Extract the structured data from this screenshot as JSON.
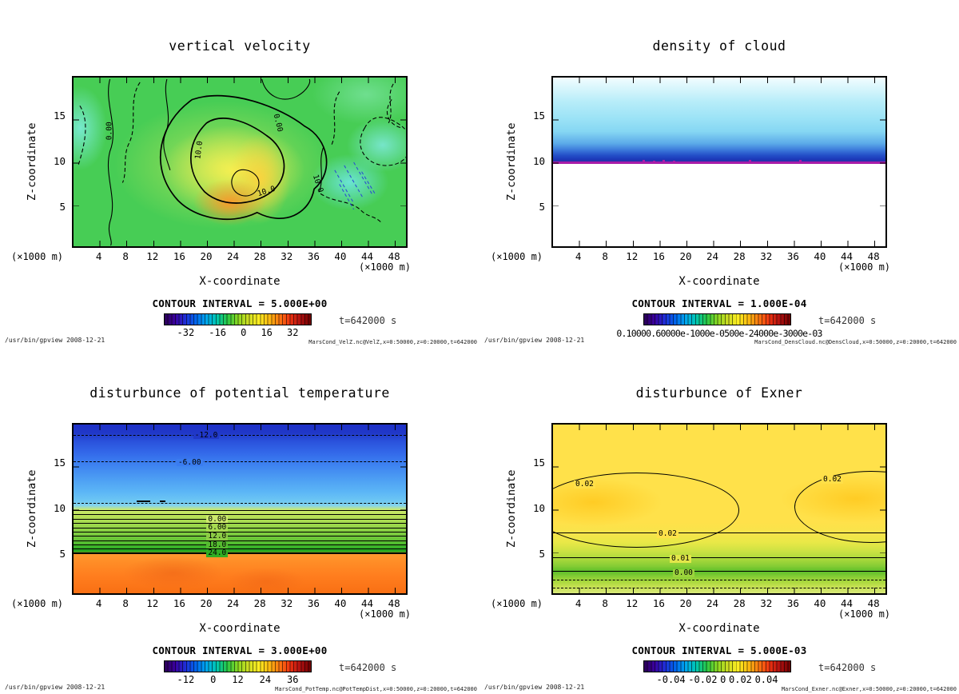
{
  "app": {
    "command": "/usr/bin/gpview  2008-12-21"
  },
  "colors": {
    "colormap": [
      "#2b0055",
      "#3b00a0",
      "#1f2fd8",
      "#0066ee",
      "#00a8ee",
      "#00c8b0",
      "#28c846",
      "#8ad822",
      "#ccdd22",
      "#ffee22",
      "#ffbb11",
      "#ff7711",
      "#ee3311",
      "#b01010",
      "#700000"
    ],
    "cloud_boundary_line": "#a81ca8"
  },
  "panels": [
    {
      "title": "vertical velocity",
      "ylabel": "Z-coordinate",
      "xlabel": "X-coordinate",
      "unit": "(×1000 m)",
      "y_ticks": [
        "15",
        "10",
        "5"
      ],
      "x_ticks": [
        "4",
        "8",
        "12",
        "16",
        "20",
        "24",
        "28",
        "32",
        "36",
        "40",
        "44",
        "48"
      ],
      "contour_interval_label": "CONTOUR INTERVAL = 5.000E+00",
      "colorbar_ticks": [
        "-32",
        "-16",
        "0",
        "16",
        "32"
      ],
      "time_label": "t=642000 s",
      "command": "/usr/bin/gpview  2008-12-21",
      "source": "MarsCond_VelZ.nc@VelZ,x=0:50000,z=0:20000,t=642000",
      "contour_labels": [
        "0.00",
        "10.0",
        "10.0",
        "10.0",
        "0.00"
      ]
    },
    {
      "title": "density of cloud",
      "ylabel": "Z-coordinate",
      "xlabel": "X-coordinate",
      "unit": "(×1000 m)",
      "y_ticks": [
        "15",
        "10",
        "5"
      ],
      "x_ticks": [
        "4",
        "8",
        "12",
        "16",
        "20",
        "24",
        "28",
        "32",
        "36",
        "40",
        "44",
        "48"
      ],
      "contour_interval_label": "CONTOUR INTERVAL = 1.000E-04",
      "colorbar_label": "0.10000.60000e-1000e-0500e-24000e-3000e-03",
      "time_label": "t=642000 s",
      "command": "/usr/bin/gpview  2008-12-21",
      "source": "MarsCond_DensCloud.nc@DensCloud,x=0:50000,z=0:20000,t=642000",
      "contour_labels": []
    },
    {
      "title": "disturbunce of potential temperature",
      "ylabel": "Z-coordinate",
      "xlabel": "X-coordinate",
      "unit": "(×1000 m)",
      "y_ticks": [
        "15",
        "10",
        "5"
      ],
      "x_ticks": [
        "4",
        "8",
        "12",
        "16",
        "20",
        "24",
        "28",
        "32",
        "36",
        "40",
        "44",
        "48"
      ],
      "contour_interval_label": "CONTOUR INTERVAL = 3.000E+00",
      "colorbar_ticks": [
        "-12",
        "0",
        "12",
        "24",
        "36"
      ],
      "time_label": "t=642000 s",
      "command": "/usr/bin/gpview  2008-12-21",
      "source": "MarsCond_PotTemp.nc@PotTempDist,x=0:50000,z=0:20000,t=642000",
      "contour_labels": [
        "-12.0",
        "-6.00",
        "0.00",
        "6.00",
        "12.0",
        "18.0",
        "24.0"
      ]
    },
    {
      "title": "disturbunce of Exner",
      "ylabel": "Z-coordinate",
      "xlabel": "X-coordinate",
      "unit": "(×1000 m)",
      "y_ticks": [
        "15",
        "10",
        "5"
      ],
      "x_ticks": [
        "4",
        "8",
        "12",
        "16",
        "20",
        "24",
        "28",
        "32",
        "36",
        "40",
        "44",
        "48"
      ],
      "contour_interval_label": "CONTOUR INTERVAL = 5.000E-03",
      "colorbar_ticks": [
        "-0.04",
        "-0.02",
        "0",
        "0.02",
        "0.04"
      ],
      "time_label": "t=642000 s",
      "command": "/usr/bin/gpview  2008-12-21",
      "source": "MarsCond_Exner.nc@Exner,x=0:50000,z=0:20000,t=642000",
      "contour_labels": [
        "0.02",
        "0.02",
        "0.02",
        "0.01",
        "0.00"
      ]
    }
  ],
  "chart_data": [
    {
      "type": "heatmap",
      "variant": "filled_contour",
      "title": "vertical velocity",
      "xlabel": "X-coordinate (×1000 m)",
      "ylabel": "Z-coordinate (×1000 m)",
      "xlim": [
        0,
        50
      ],
      "ylim": [
        0,
        20
      ],
      "x_ticks": [
        4,
        8,
        12,
        16,
        20,
        24,
        28,
        32,
        36,
        40,
        44,
        48
      ],
      "y_ticks": [
        5,
        10,
        15
      ],
      "contour_interval": 5.0,
      "colorbar_ticks": [
        -32,
        -16,
        0,
        16,
        32
      ],
      "labeled_contour_levels": [
        0.0,
        10.0
      ],
      "time_seconds": 642000,
      "source": "MarsCond_VelZ.nc@VelZ,x=0:50000,z=0:20000,t=642000",
      "summary": "Green background near 0-5; yellow-orange updraft core reaching about +15 near x=18-26, z=3-8; cyan downdraft patches about -5 to -10 with dashed contours near x=34-46 and at the left edge."
    },
    {
      "type": "heatmap",
      "variant": "filled_contour",
      "title": "density of cloud",
      "xlabel": "X-coordinate (×1000 m)",
      "ylabel": "Z-coordinate (×1000 m)",
      "xlim": [
        0,
        50
      ],
      "ylim": [
        0,
        20
      ],
      "x_ticks": [
        4,
        8,
        12,
        16,
        20,
        24,
        28,
        32,
        36,
        40,
        44,
        48
      ],
      "y_ticks": [
        5,
        10,
        15
      ],
      "contour_interval": 0.0001,
      "colorbar_tick_text": "0.10000.60000e-1000e-0500e-24000e-3000e-03",
      "time_seconds": 642000,
      "source": "MarsCond_DensCloud.nc@DensCloud,x=0:50000,z=0:20000,t=642000",
      "summary": "Cloud layer between z=10 and z=20: value increases downward from ~0 (white/pale cyan) at z=20 to maximum ~3e-04 (dark blue) just above z=10; sharp magenta boundary line at z=10; zero (white) below z=10."
    },
    {
      "type": "heatmap",
      "variant": "filled_contour",
      "title": "disturbunce of potential temperature",
      "xlabel": "X-coordinate (×1000 m)",
      "ylabel": "Z-coordinate (×1000 m)",
      "xlim": [
        0,
        50
      ],
      "ylim": [
        0,
        20
      ],
      "x_ticks": [
        4,
        8,
        12,
        16,
        20,
        24,
        28,
        32,
        36,
        40,
        44,
        48
      ],
      "y_ticks": [
        5,
        10,
        15
      ],
      "contour_interval": 3.0,
      "colorbar_ticks": [
        -12,
        0,
        12,
        24,
        36
      ],
      "labeled_contour_levels": [
        -12,
        -6,
        0,
        6,
        12,
        18,
        24
      ],
      "time_seconds": 642000,
      "source": "MarsCond_PotTemp.nc@PotTempDist,x=0:50000,z=0:20000,t=642000",
      "summary": "Horizontally stratified field: about -13 (dark blue) at z=20, -6 near z=15.5, 0 near z=9, +24 near z=5, and +27 to +33 (orange/red) below z=5."
    },
    {
      "type": "heatmap",
      "variant": "filled_contour",
      "title": "disturbunce of Exner",
      "xlabel": "X-coordinate (×1000 m)",
      "ylabel": "Z-coordinate (×1000 m)",
      "xlim": [
        0,
        50
      ],
      "ylim": [
        0,
        20
      ],
      "x_ticks": [
        4,
        8,
        12,
        16,
        20,
        24,
        28,
        32,
        36,
        40,
        44,
        48
      ],
      "y_ticks": [
        5,
        10,
        15
      ],
      "contour_interval": 0.005,
      "colorbar_ticks": [
        -0.04,
        -0.02,
        0,
        0.02,
        0.04
      ],
      "labeled_contour_levels": [
        0.0,
        0.01,
        0.02
      ],
      "time_seconds": 642000,
      "source": "MarsCond_Exner.nc@Exner,x=0:50000,z=0:20000,t=642000",
      "summary": "Yellow field ~0.02-0.03 aloft with two closed 0.02 maxima near z=10 at left (x~0-12) and right (x~42-50); values fall toward the surface: 0.01 near z=4.5, 0.00 near z=3, slightly negative dashed contours in the green band near the bottom."
    }
  ]
}
